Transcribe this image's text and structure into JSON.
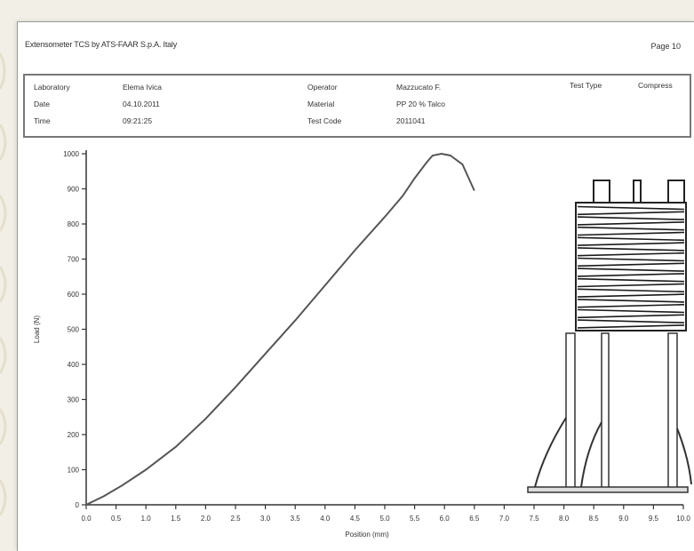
{
  "report": {
    "title": "Extensometer TCS by ATS-FAAR S.p.A. Italy",
    "page": "Page 10"
  },
  "info": {
    "col1": [
      {
        "label": "Laboratory",
        "value": "Elema Ivica"
      },
      {
        "label": "Date",
        "value": "04.10.2011"
      },
      {
        "label": "Time",
        "value": "09:21:25"
      }
    ],
    "col2": [
      {
        "label": "Operator",
        "value": "Mazzucato F."
      },
      {
        "label": "Material",
        "value": "PP 20 % Talco"
      },
      {
        "label": "Test Code",
        "value": "2011041"
      }
    ],
    "col3": [
      {
        "label": "Test Type",
        "value": "Compress"
      }
    ]
  },
  "chart_data": {
    "type": "line",
    "title": "",
    "xlabel": "Position (mm)",
    "ylabel": "Load (N)",
    "xlim": [
      0,
      10
    ],
    "ylim": [
      0,
      1000
    ],
    "xticks": [
      "0.0",
      "0.5",
      "1.0",
      "1.5",
      "2.0",
      "2.5",
      "3.0",
      "3.5",
      "4.0",
      "4.5",
      "5.0",
      "5.5",
      "6.0",
      "6.5",
      "7.0",
      "7.5",
      "8.0",
      "8.5",
      "9.0",
      "9.5",
      "10.0"
    ],
    "yticks": [
      "0",
      "100",
      "200",
      "300",
      "400",
      "500",
      "600",
      "700",
      "800",
      "900",
      "1000"
    ],
    "series": [
      {
        "name": "",
        "color": "#555555",
        "x": [
          0.0,
          0.3,
          0.6,
          1.0,
          1.5,
          2.0,
          2.5,
          3.0,
          3.5,
          4.0,
          4.5,
          5.0,
          5.3,
          5.5,
          5.7,
          5.8,
          5.95,
          6.1,
          6.3,
          6.5
        ],
        "y": [
          0,
          25,
          55,
          100,
          165,
          245,
          335,
          430,
          525,
          625,
          725,
          820,
          880,
          930,
          975,
          995,
          1000,
          995,
          970,
          895
        ]
      }
    ]
  }
}
